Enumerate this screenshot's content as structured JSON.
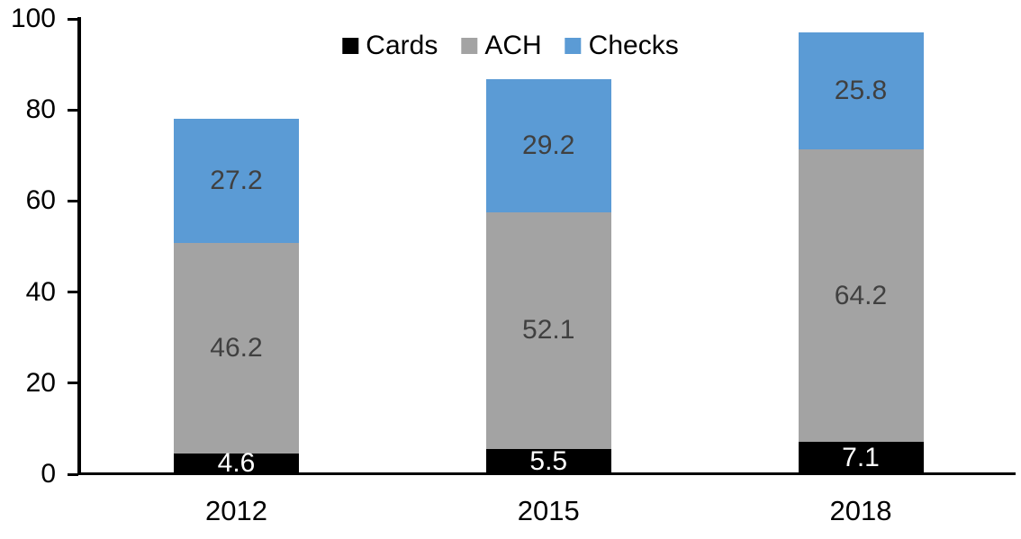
{
  "chart_data": {
    "type": "bar",
    "stacked": true,
    "title": "",
    "xlabel": "",
    "ylabel": "",
    "categories": [
      "2012",
      "2015",
      "2018"
    ],
    "series": [
      {
        "name": "Cards",
        "color": "#000000",
        "label_color": "#ffffff",
        "values": [
          4.6,
          5.5,
          7.1
        ]
      },
      {
        "name": "ACH",
        "color": "#a3a3a3",
        "label_color": "#404040",
        "values": [
          46.2,
          52.1,
          64.2
        ]
      },
      {
        "name": "Checks",
        "color": "#5b9bd5",
        "label_color": "#404040",
        "values": [
          27.2,
          29.2,
          25.8
        ]
      }
    ],
    "yticks": [
      0,
      20,
      40,
      60,
      80,
      100
    ],
    "ylim": [
      0,
      100
    ],
    "legend_position": "top",
    "grid": false,
    "axis_color": "#000000"
  }
}
